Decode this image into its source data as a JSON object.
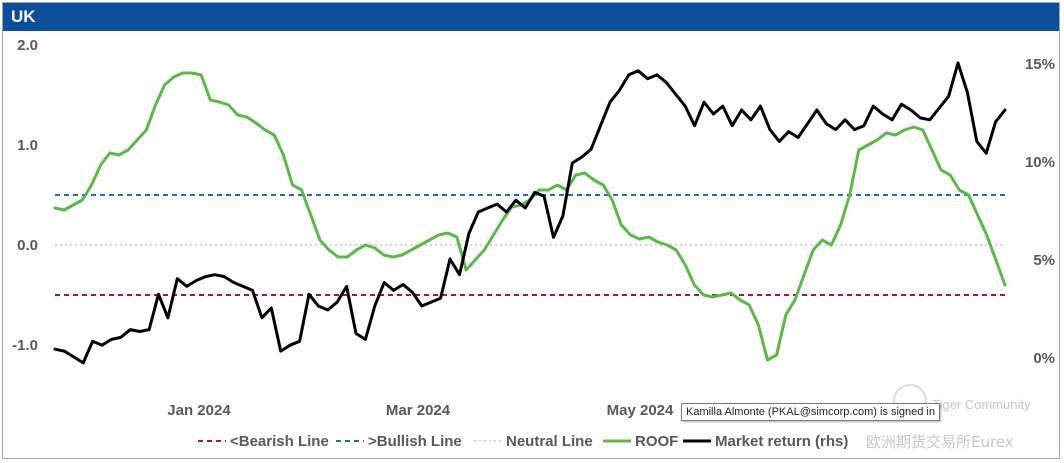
{
  "chart_data": {
    "type": "line",
    "title": "UK",
    "x_ticks": [
      "Jan 2024",
      "Mar 2024",
      "May 2024"
    ],
    "y_left": {
      "ticks": [
        "2.0",
        "1.0",
        "0.0",
        "-1.0"
      ],
      "values": [
        2.0,
        1.0,
        0.0,
        -1.0
      ],
      "range": [
        -1.1,
        2.0
      ]
    },
    "y_right": {
      "ticks": [
        "15%",
        "10%",
        "5%",
        "0%"
      ],
      "values": [
        15,
        10,
        5,
        0
      ],
      "range": [
        0,
        15
      ]
    },
    "reference_lines": [
      {
        "name": "<Bearish Line",
        "value": -0.5,
        "color": "#a6192e",
        "style": "dashed"
      },
      {
        "name": ">Bullish Line",
        "value": 0.5,
        "color": "#1f6fb2",
        "style": "dashed"
      },
      {
        "name": "Neutral Line",
        "value": 0.0,
        "color": "#c9c9c9",
        "style": "dotted"
      }
    ],
    "series": [
      {
        "name": "ROOF",
        "axis": "left",
        "color": "#5cb84a",
        "values": [
          0.37,
          0.35,
          0.4,
          0.45,
          0.6,
          0.8,
          0.92,
          0.9,
          0.95,
          1.05,
          1.15,
          1.4,
          1.6,
          1.68,
          1.72,
          1.72,
          1.7,
          1.45,
          1.43,
          1.4,
          1.3,
          1.28,
          1.22,
          1.15,
          1.1,
          0.9,
          0.6,
          0.55,
          0.3,
          0.05,
          -0.05,
          -0.12,
          -0.12,
          -0.05,
          0.0,
          -0.03,
          -0.1,
          -0.12,
          -0.1,
          -0.05,
          0.0,
          0.05,
          0.1,
          0.12,
          0.08,
          -0.25,
          -0.15,
          -0.05,
          0.1,
          0.25,
          0.38,
          0.4,
          0.45,
          0.55,
          0.55,
          0.6,
          0.55,
          0.7,
          0.72,
          0.65,
          0.6,
          0.45,
          0.2,
          0.1,
          0.06,
          0.08,
          0.03,
          0.0,
          -0.05,
          -0.2,
          -0.4,
          -0.5,
          -0.52,
          -0.5,
          -0.48,
          -0.55,
          -0.6,
          -0.8,
          -1.15,
          -1.1,
          -0.7,
          -0.55,
          -0.3,
          -0.05,
          0.05,
          0.0,
          0.2,
          0.5,
          0.95,
          1.0,
          1.05,
          1.12,
          1.1,
          1.15,
          1.18,
          1.15,
          0.95,
          0.75,
          0.7,
          0.55,
          0.5,
          0.3,
          0.1,
          -0.15,
          -0.4
        ]
      },
      {
        "name": "Market return (rhs)",
        "axis": "right",
        "color": "#000000",
        "values": [
          0.4,
          0.3,
          0.0,
          -0.3,
          0.8,
          0.6,
          0.9,
          1.0,
          1.4,
          1.3,
          1.4,
          3.2,
          2.0,
          4.0,
          3.6,
          3.9,
          4.1,
          4.2,
          4.1,
          3.8,
          3.6,
          3.4,
          2.0,
          2.5,
          0.3,
          0.6,
          0.8,
          3.2,
          2.6,
          2.4,
          2.8,
          3.6,
          1.2,
          0.9,
          2.6,
          3.8,
          3.4,
          3.7,
          3.3,
          2.6,
          2.8,
          3.0,
          5.0,
          4.2,
          6.3,
          7.4,
          7.6,
          7.8,
          7.4,
          8.0,
          7.6,
          8.4,
          8.2,
          6.1,
          7.2,
          9.9,
          10.2,
          10.6,
          11.8,
          13.0,
          13.6,
          14.4,
          14.6,
          14.2,
          14.4,
          14.0,
          13.4,
          12.8,
          11.8,
          13.0,
          12.4,
          12.8,
          11.8,
          12.6,
          12.1,
          12.8,
          11.6,
          11.0,
          11.5,
          11.2,
          11.9,
          12.6,
          11.9,
          11.6,
          12.1,
          11.6,
          11.8,
          12.8,
          12.4,
          12.1,
          12.9,
          12.6,
          12.2,
          12.1,
          12.7,
          13.3,
          15.0,
          13.5,
          11.0,
          10.4,
          12.0,
          12.6
        ]
      }
    ],
    "legend": {
      "position": "bottom"
    }
  },
  "tooltip": {
    "text": "Kamilla Almonte (PKAL@simcorp.com) is signed in"
  },
  "watermark": {
    "line1": "Tiger Community",
    "line2": "欧洲期货交易所Eurex"
  }
}
